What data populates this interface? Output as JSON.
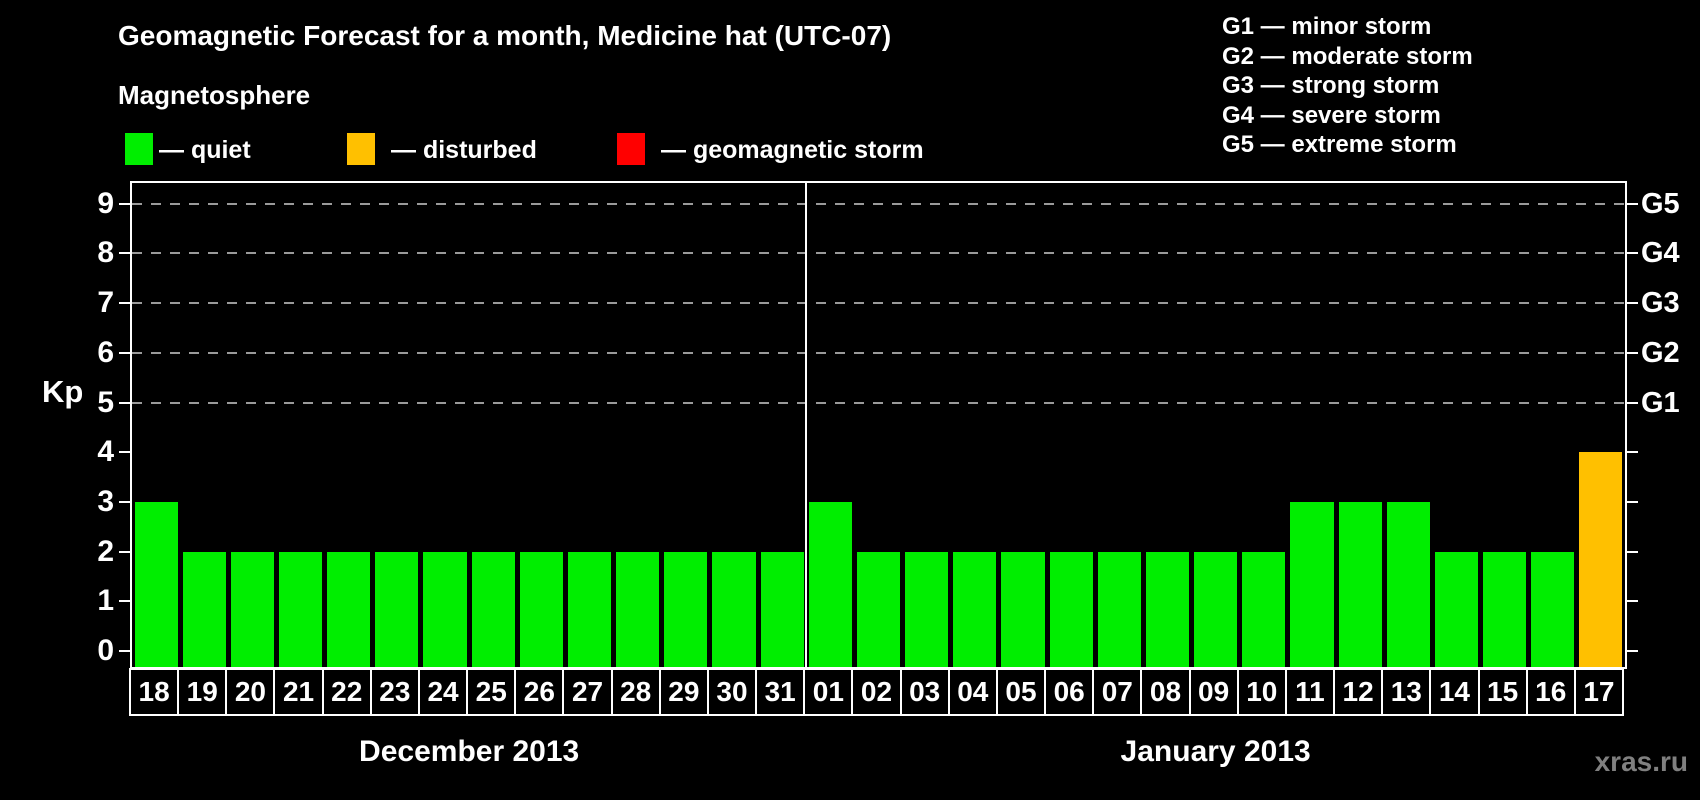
{
  "header": {
    "title": "Geomagnetic Forecast for a month, Medicine hat (UTC-07)",
    "subtitle": "Magnetosphere"
  },
  "legend": {
    "items": [
      {
        "status": "quiet",
        "label": "— quiet",
        "color": "#00ee00"
      },
      {
        "status": "disturbed",
        "label": "— disturbed",
        "color": "#ffc000"
      },
      {
        "status": "storm",
        "label": "— geomagnetic storm",
        "color": "#ff0000"
      }
    ]
  },
  "storm_scale": {
    "lines": [
      "G1 — minor storm",
      "G2 — moderate storm",
      "G3 — strong storm",
      "G4 — severe storm",
      "G5 — extreme storm"
    ]
  },
  "watermark": "xras.ru",
  "chart_data": {
    "type": "bar",
    "title": "Geomagnetic Forecast for a month, Medicine hat (UTC-07)",
    "ylabel": "Kp",
    "ylim": [
      0,
      9
    ],
    "yticks": [
      0,
      1,
      2,
      3,
      4,
      5,
      6,
      7,
      8,
      9
    ],
    "grid_levels": [
      5,
      6,
      7,
      8,
      9
    ],
    "grid_color": "#9a9a9a",
    "legend_position": "top",
    "right_axis_labels": [
      {
        "kp": 5,
        "label": "G1"
      },
      {
        "kp": 6,
        "label": "G2"
      },
      {
        "kp": 7,
        "label": "G3"
      },
      {
        "kp": 8,
        "label": "G4"
      },
      {
        "kp": 9,
        "label": "G5"
      }
    ],
    "status_colors": {
      "quiet": "#00ee00",
      "disturbed": "#ffc000",
      "storm": "#ff0000"
    },
    "months": [
      {
        "label": "December 2013",
        "days": [
          {
            "day": "18",
            "kp": 3,
            "status": "quiet"
          },
          {
            "day": "19",
            "kp": 2,
            "status": "quiet"
          },
          {
            "day": "20",
            "kp": 2,
            "status": "quiet"
          },
          {
            "day": "21",
            "kp": 2,
            "status": "quiet"
          },
          {
            "day": "22",
            "kp": 2,
            "status": "quiet"
          },
          {
            "day": "23",
            "kp": 2,
            "status": "quiet"
          },
          {
            "day": "24",
            "kp": 2,
            "status": "quiet"
          },
          {
            "day": "25",
            "kp": 2,
            "status": "quiet"
          },
          {
            "day": "26",
            "kp": 2,
            "status": "quiet"
          },
          {
            "day": "27",
            "kp": 2,
            "status": "quiet"
          },
          {
            "day": "28",
            "kp": 2,
            "status": "quiet"
          },
          {
            "day": "29",
            "kp": 2,
            "status": "quiet"
          },
          {
            "day": "30",
            "kp": 2,
            "status": "quiet"
          },
          {
            "day": "31",
            "kp": 2,
            "status": "quiet"
          }
        ]
      },
      {
        "label": "January 2013",
        "days": [
          {
            "day": "01",
            "kp": 3,
            "status": "quiet"
          },
          {
            "day": "02",
            "kp": 2,
            "status": "quiet"
          },
          {
            "day": "03",
            "kp": 2,
            "status": "quiet"
          },
          {
            "day": "04",
            "kp": 2,
            "status": "quiet"
          },
          {
            "day": "05",
            "kp": 2,
            "status": "quiet"
          },
          {
            "day": "06",
            "kp": 2,
            "status": "quiet"
          },
          {
            "day": "07",
            "kp": 2,
            "status": "quiet"
          },
          {
            "day": "08",
            "kp": 2,
            "status": "quiet"
          },
          {
            "day": "09",
            "kp": 2,
            "status": "quiet"
          },
          {
            "day": "10",
            "kp": 2,
            "status": "quiet"
          },
          {
            "day": "11",
            "kp": 3,
            "status": "quiet"
          },
          {
            "day": "12",
            "kp": 3,
            "status": "quiet"
          },
          {
            "day": "13",
            "kp": 3,
            "status": "quiet"
          },
          {
            "day": "14",
            "kp": 2,
            "status": "quiet"
          },
          {
            "day": "15",
            "kp": 2,
            "status": "quiet"
          },
          {
            "day": "16",
            "kp": 2,
            "status": "quiet"
          },
          {
            "day": "17",
            "kp": 4,
            "status": "disturbed"
          }
        ]
      }
    ]
  }
}
